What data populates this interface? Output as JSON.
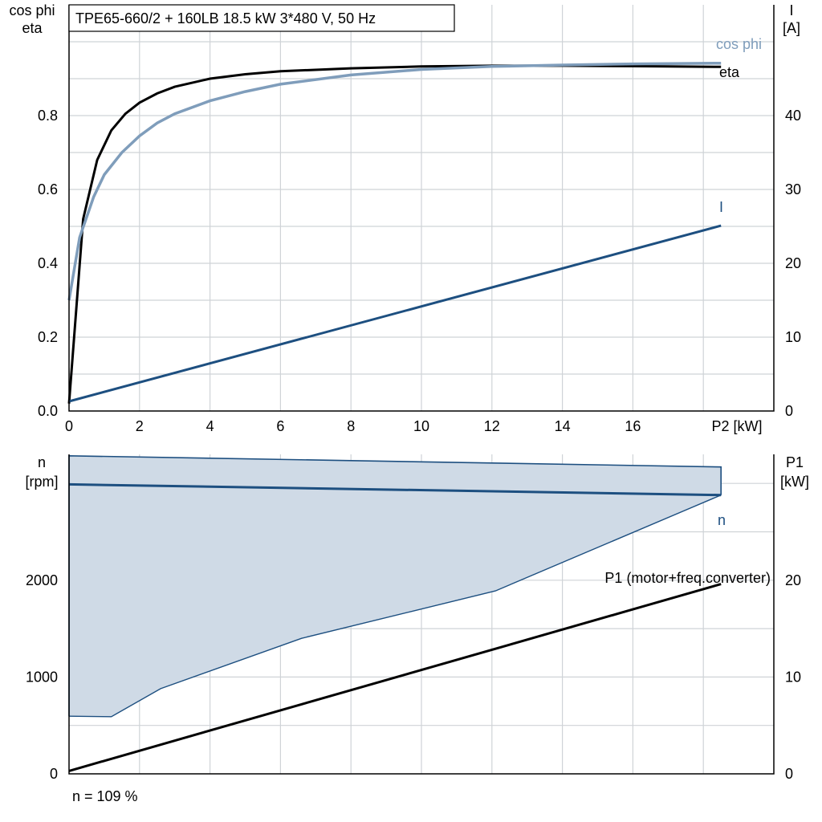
{
  "colors": {
    "eta": "#000000",
    "cosphi": "#7f9dbb",
    "current": "#1d4f80",
    "speed": "#1d4f80",
    "band_fill": "#cfdae6",
    "p1": "#000000",
    "grid": "#cfd3d7"
  },
  "chart_data": [
    {
      "type": "line",
      "title": "TPE65-660/2 + 160LB   18.5 kW   3*480 V, 50 Hz",
      "xlabel": "P2 [kW]",
      "ylabel_left": [
        "cos phi",
        "eta"
      ],
      "ylabel_right": [
        "I",
        "[A]"
      ],
      "xlim": [
        0,
        20
      ],
      "ylim_left": [
        0,
        1.1
      ],
      "ylim_right": [
        0,
        55
      ],
      "x_ticks": [
        0,
        2,
        4,
        6,
        8,
        10,
        12,
        14,
        16
      ],
      "x_tick_labels": [
        "0",
        "2",
        "4",
        "6",
        "8",
        "10",
        "12",
        "14",
        "16"
      ],
      "y_left_ticks": [
        0,
        0.2,
        0.4,
        0.6,
        0.8
      ],
      "y_left_tick_labels": [
        "0.0",
        "0.2",
        "0.4",
        "0.6",
        "0.8"
      ],
      "y_right_ticks": [
        0,
        10,
        20,
        30,
        40
      ],
      "y_right_tick_labels": [
        "0",
        "10",
        "20",
        "30",
        "40"
      ],
      "grid": true,
      "series": [
        {
          "name": "eta",
          "axis": "left",
          "x": [
            0,
            0.4,
            0.8,
            1.2,
            1.6,
            2,
            2.5,
            3,
            4,
            5,
            6,
            8,
            10,
            12,
            14,
            16,
            18.5
          ],
          "y": [
            0.02,
            0.52,
            0.68,
            0.76,
            0.805,
            0.835,
            0.86,
            0.878,
            0.9,
            0.912,
            0.92,
            0.928,
            0.933,
            0.935,
            0.935,
            0.934,
            0.932
          ]
        },
        {
          "name": "cos phi",
          "axis": "left",
          "x": [
            0,
            0.3,
            0.7,
            1,
            1.5,
            2,
            2.5,
            3,
            4,
            5,
            6,
            8,
            10,
            12,
            14,
            16,
            18.5
          ],
          "y": [
            0.3,
            0.47,
            0.58,
            0.64,
            0.7,
            0.745,
            0.78,
            0.805,
            0.84,
            0.865,
            0.885,
            0.91,
            0.925,
            0.933,
            0.937,
            0.94,
            0.942
          ]
        },
        {
          "name": "I",
          "axis": "right",
          "x": [
            0,
            18.5
          ],
          "y": [
            1.3,
            25.1
          ]
        }
      ]
    },
    {
      "type": "area",
      "xlabel": "",
      "ylabel_left": [
        "n",
        "[rpm]"
      ],
      "ylabel_right": [
        "P1",
        "[kW]"
      ],
      "xlim": [
        0,
        20
      ],
      "ylim_left": [
        0,
        3300
      ],
      "ylim_right": [
        0,
        33
      ],
      "y_left_ticks": [
        0,
        1000,
        2000
      ],
      "y_left_tick_labels": [
        "0",
        "1000",
        "2000"
      ],
      "y_right_ticks": [
        0,
        10,
        20
      ],
      "y_right_tick_labels": [
        "0",
        "10",
        "20"
      ],
      "grid": true,
      "speed_band": {
        "upper_x": [
          0,
          18.5
        ],
        "upper_y": [
          3285,
          3170
        ],
        "lower_x": [
          0,
          1.2,
          2.6,
          6.6,
          12.1,
          18.5
        ],
        "lower_y": [
          595,
          590,
          880,
          1400,
          1890,
          2880
        ]
      },
      "series": [
        {
          "name": "n",
          "axis": "left",
          "x": [
            0,
            18.5
          ],
          "y": [
            2990,
            2880
          ]
        },
        {
          "name": "P1 (motor+freq.converter)",
          "axis": "right",
          "x": [
            0,
            18.5
          ],
          "y": [
            0.3,
            19.6
          ]
        }
      ],
      "annotation": "n = 109 %"
    }
  ]
}
